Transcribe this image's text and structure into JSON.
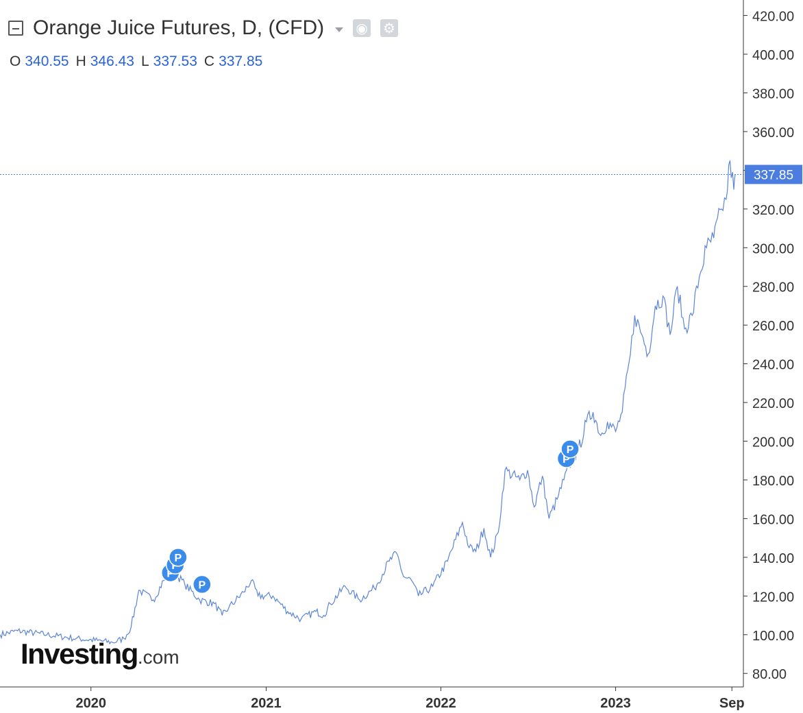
{
  "legend": {
    "title": "Orange Juice Futures, D, (CFD)",
    "ohlc": [
      {
        "label": "O",
        "value": "340.55"
      },
      {
        "label": "H",
        "value": "346.43"
      },
      {
        "label": "L",
        "value": "337.53"
      },
      {
        "label": "C",
        "value": "337.85"
      }
    ]
  },
  "watermark": {
    "brand": "Investing",
    "suffix": ".com"
  },
  "colors": {
    "line": "#5b84d8",
    "marker": "#3b8bea",
    "price_tag": "#4a7ddf",
    "axis": "#333333",
    "text": "#333333"
  },
  "icons": [
    "collapse-icon",
    "caret-down-icon",
    "eye-icon",
    "gear-icon"
  ],
  "chart_data": {
    "type": "line",
    "title": "",
    "xlabel": "",
    "ylabel": "",
    "ylim": [
      73,
      428
    ],
    "xlim": [
      "2019-06-25",
      "2023-09-25"
    ],
    "y_ticks": [
      "420.00",
      "400.00",
      "380.00",
      "360.00",
      "340.00",
      "320.00",
      "300.00",
      "280.00",
      "260.00",
      "240.00",
      "220.00",
      "200.00",
      "180.00",
      "160.00",
      "140.00",
      "120.00",
      "100.00",
      "80.00"
    ],
    "x_ticks": [
      {
        "label": "2020",
        "date": "2020-01-01"
      },
      {
        "label": "2021",
        "date": "2021-01-01"
      },
      {
        "label": "2022",
        "date": "2022-01-01"
      },
      {
        "label": "2023",
        "date": "2023-01-01"
      },
      {
        "label": "Sep",
        "date": "2023-09-01"
      }
    ],
    "last_price": "337.85",
    "grid": false,
    "series": [
      {
        "x": [
          "2019-06-25",
          "2019-08-01",
          "2019-10-01",
          "2019-12-01",
          "2020-01-15",
          "2020-02-15",
          "2020-03-10",
          "2020-03-25",
          "2020-04-10",
          "2020-05-10",
          "2020-06-01",
          "2020-06-25",
          "2020-07-15",
          "2020-08-15",
          "2020-09-15",
          "2020-10-01",
          "2020-10-15",
          "2020-11-15",
          "2020-12-01",
          "2020-12-15",
          "2021-01-15",
          "2021-02-15",
          "2021-03-15",
          "2021-04-15",
          "2021-05-01",
          "2021-05-15",
          "2021-06-15",
          "2021-07-15",
          "2021-08-15",
          "2021-09-15",
          "2021-10-01",
          "2021-10-15",
          "2021-11-01",
          "2021-11-15",
          "2021-12-15",
          "2022-01-15",
          "2022-02-15",
          "2022-03-01",
          "2022-03-15",
          "2022-04-01",
          "2022-04-15",
          "2022-05-01",
          "2022-05-15",
          "2022-06-15",
          "2022-07-01",
          "2022-07-15",
          "2022-08-01",
          "2022-08-15",
          "2022-09-01",
          "2022-09-15",
          "2022-10-01",
          "2022-10-15",
          "2022-11-01",
          "2022-11-15",
          "2022-12-01",
          "2022-12-15",
          "2023-01-01",
          "2023-01-15",
          "2023-02-01",
          "2023-02-10",
          "2023-02-25",
          "2023-03-10",
          "2023-03-25",
          "2023-04-10",
          "2023-04-25",
          "2023-05-10",
          "2023-05-25",
          "2023-06-10",
          "2023-06-25",
          "2023-07-10",
          "2023-07-25",
          "2023-08-10",
          "2023-08-20",
          "2023-08-28",
          "2023-09-05",
          "2023-09-08"
        ],
        "values": [
          100,
          102,
          100,
          98,
          97,
          96,
          98,
          104,
          123,
          118,
          128,
          132,
          126,
          118,
          116,
          110,
          114,
          122,
          128,
          120,
          120,
          112,
          108,
          112,
          110,
          116,
          125,
          118,
          124,
          138,
          142,
          130,
          128,
          120,
          125,
          138,
          158,
          145,
          143,
          155,
          140,
          153,
          185,
          180,
          185,
          166,
          182,
          160,
          170,
          180,
          190,
          195,
          210,
          215,
          203,
          210,
          205,
          215,
          245,
          265,
          255,
          245,
          270,
          275,
          255,
          280,
          258,
          265,
          285,
          300,
          305,
          320,
          325,
          345,
          330,
          337.85
        ]
      }
    ],
    "markers": [
      {
        "label": "P",
        "date": "2020-06-15",
        "value": 132
      },
      {
        "label": "P",
        "date": "2020-06-25",
        "value": 136
      },
      {
        "label": "P",
        "date": "2020-07-01",
        "value": 140
      },
      {
        "label": "P",
        "date": "2020-08-20",
        "value": 126
      },
      {
        "label": "P",
        "date": "2022-09-20",
        "value": 191
      },
      {
        "label": "P",
        "date": "2022-09-28",
        "value": 196
      }
    ]
  }
}
